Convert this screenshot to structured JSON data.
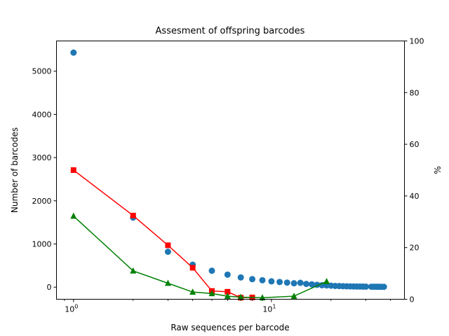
{
  "chart_data": {
    "type": "scatter",
    "title": "Assesment of offspring barcodes",
    "xlabel": "Raw sequences per barcode",
    "ylabel": "Number of barcodes",
    "y2label": "%",
    "xscale": "log",
    "xlim": [
      0.82,
      47
    ],
    "ylim": [
      -280,
      5700
    ],
    "y2lim": [
      0,
      100
    ],
    "x_ticks": [
      {
        "value": 1,
        "label": "10",
        "exp": "0"
      },
      {
        "value": 10,
        "label": "10",
        "exp": "1"
      }
    ],
    "y_ticks": [
      0,
      1000,
      2000,
      3000,
      4000,
      5000
    ],
    "y2_ticks": [
      0,
      20,
      40,
      60,
      80,
      100
    ],
    "grid": false,
    "series": [
      {
        "axis": "left",
        "style": "scatter",
        "color": "#1f77b4",
        "marker": "circle",
        "points": [
          [
            1,
            5430
          ],
          [
            2,
            1610
          ],
          [
            3,
            820
          ],
          [
            4,
            520
          ],
          [
            5,
            380
          ],
          [
            6,
            290
          ],
          [
            7,
            225
          ],
          [
            8,
            185
          ],
          [
            9,
            160
          ],
          [
            10,
            135
          ],
          [
            11,
            120
          ],
          [
            12,
            105
          ],
          [
            13,
            90
          ],
          [
            14,
            100
          ],
          [
            15,
            75
          ],
          [
            16,
            65
          ],
          [
            17,
            55
          ],
          [
            18,
            45
          ],
          [
            19,
            40
          ],
          [
            20,
            35
          ],
          [
            21,
            28
          ],
          [
            22,
            25
          ],
          [
            23,
            22
          ],
          [
            24,
            20
          ],
          [
            25,
            18
          ],
          [
            26,
            16
          ],
          [
            27,
            15
          ],
          [
            28,
            14
          ],
          [
            29,
            13
          ],
          [
            30,
            12
          ],
          [
            32,
            10
          ],
          [
            33,
            10
          ],
          [
            34,
            9
          ],
          [
            35,
            9
          ],
          [
            36,
            8
          ],
          [
            37,
            8
          ]
        ]
      },
      {
        "axis": "right",
        "style": "line",
        "color": "#ff0000",
        "marker": "square",
        "points": [
          [
            1,
            50
          ],
          [
            2,
            32.4
          ],
          [
            3,
            20.9
          ],
          [
            4,
            12.2
          ],
          [
            5,
            3.2
          ],
          [
            6,
            2.9
          ],
          [
            7,
            0.6
          ],
          [
            8,
            0.7
          ]
        ]
      },
      {
        "axis": "right",
        "style": "line",
        "color": "#008000",
        "marker": "triangle",
        "points": [
          [
            1,
            32.2
          ],
          [
            2,
            11
          ],
          [
            3,
            6.2
          ],
          [
            4,
            2.8
          ],
          [
            5,
            2.2
          ],
          [
            6,
            1.2
          ],
          [
            7,
            0.8
          ],
          [
            9,
            0.6
          ],
          [
            13,
            1.2
          ],
          [
            19,
            6.9
          ]
        ]
      }
    ]
  }
}
